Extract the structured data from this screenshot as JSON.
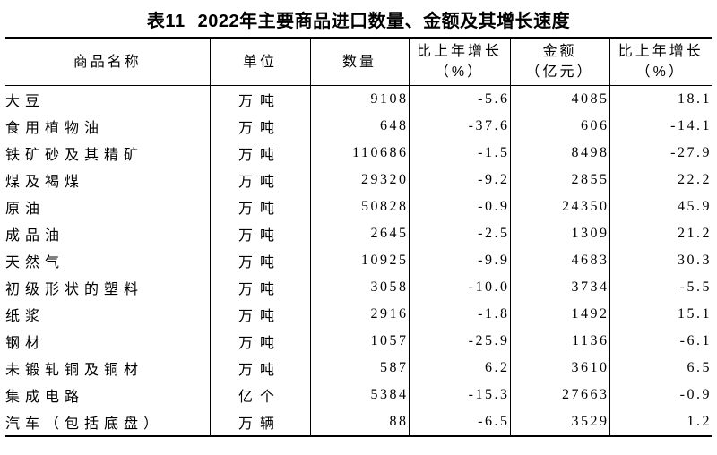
{
  "title": {
    "label": "表11",
    "text": "2022年主要商品进口数量、金额及其增长速度"
  },
  "table": {
    "columns": [
      {
        "key": "name",
        "line1": "商品名称"
      },
      {
        "key": "unit",
        "line1": "单位"
      },
      {
        "key": "qty",
        "line1": "数量"
      },
      {
        "key": "qty_growth",
        "line1": "比上年增长",
        "line2": "（%）"
      },
      {
        "key": "value",
        "line1": "金额",
        "line2": "（亿元）"
      },
      {
        "key": "value_growth",
        "line1": "比上年增长",
        "line2": "（%）"
      }
    ],
    "rows": [
      {
        "name": "大豆",
        "unit": "万吨",
        "qty": "9108",
        "qty_growth": "-5.6",
        "value": "4085",
        "value_growth": "18.1"
      },
      {
        "name": "食用植物油",
        "unit": "万吨",
        "qty": "648",
        "qty_growth": "-37.6",
        "value": "606",
        "value_growth": "-14.1"
      },
      {
        "name": "铁矿砂及其精矿",
        "unit": "万吨",
        "qty": "110686",
        "qty_growth": "-1.5",
        "value": "8498",
        "value_growth": "-27.9"
      },
      {
        "name": "煤及褐煤",
        "unit": "万吨",
        "qty": "29320",
        "qty_growth": "-9.2",
        "value": "2855",
        "value_growth": "22.2"
      },
      {
        "name": "原油",
        "unit": "万吨",
        "qty": "50828",
        "qty_growth": "-0.9",
        "value": "24350",
        "value_growth": "45.9"
      },
      {
        "name": "成品油",
        "unit": "万吨",
        "qty": "2645",
        "qty_growth": "-2.5",
        "value": "1309",
        "value_growth": "21.2"
      },
      {
        "name": "天然气",
        "unit": "万吨",
        "qty": "10925",
        "qty_growth": "-9.9",
        "value": "4683",
        "value_growth": "30.3"
      },
      {
        "name": "初级形状的塑料",
        "unit": "万吨",
        "qty": "3058",
        "qty_growth": "-10.0",
        "value": "3734",
        "value_growth": "-5.5"
      },
      {
        "name": "纸浆",
        "unit": "万吨",
        "qty": "2916",
        "qty_growth": "-1.8",
        "value": "1492",
        "value_growth": "15.1"
      },
      {
        "name": "钢材",
        "unit": "万吨",
        "qty": "1057",
        "qty_growth": "-25.9",
        "value": "1136",
        "value_growth": "-6.1"
      },
      {
        "name": "未锻轧铜及铜材",
        "unit": "万吨",
        "qty": "587",
        "qty_growth": "6.2",
        "value": "3610",
        "value_growth": "6.5"
      },
      {
        "name": "集成电路",
        "unit": "亿个",
        "qty": "5384",
        "qty_growth": "-15.3",
        "value": "27663",
        "value_growth": "-0.9"
      },
      {
        "name": "汽车（包括底盘）",
        "unit": "万辆",
        "qty": "88",
        "qty_growth": "-6.5",
        "value": "3529",
        "value_growth": "1.2"
      }
    ]
  }
}
